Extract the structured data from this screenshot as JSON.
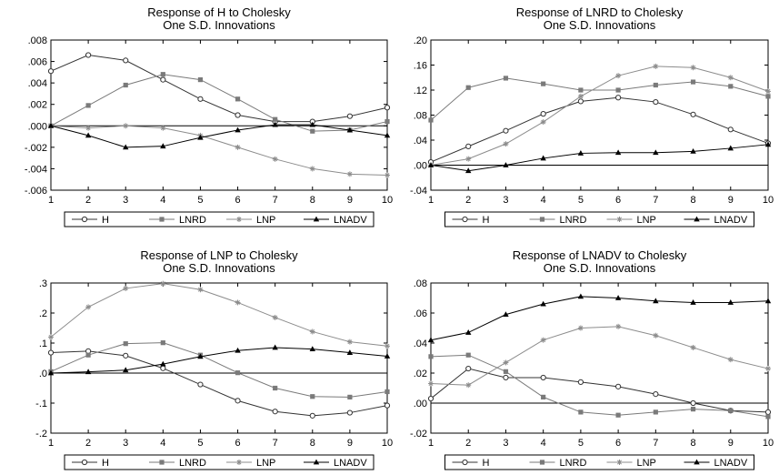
{
  "colors": {
    "H": "#333333",
    "LNRD": "#7a7a7a",
    "LNP": "#8c8c8c",
    "LNADV": "#000000",
    "zero_line": "#000000",
    "frame": "#000000"
  },
  "chart_data": [
    {
      "type": "line",
      "title": "Response of H to Cholesky",
      "subtitle": "One S.D. Innovations",
      "x": [
        1,
        2,
        3,
        4,
        5,
        6,
        7,
        8,
        9,
        10
      ],
      "x_ticks": [
        "1",
        "2",
        "3",
        "4",
        "5",
        "6",
        "7",
        "8",
        "9",
        "10"
      ],
      "ylim": [
        -0.006,
        0.008
      ],
      "y_ticks": [
        -0.006,
        -0.004,
        -0.002,
        0.0,
        0.002,
        0.004,
        0.006,
        0.008
      ],
      "y_tick_labels": [
        "-.006",
        "-.004",
        "-.002",
        ".000",
        ".002",
        ".004",
        ".006",
        ".008"
      ],
      "legend_position": "bottom",
      "series": [
        {
          "name": "H",
          "marker": "circle",
          "values": [
            0.0051,
            0.0066,
            0.0061,
            0.0043,
            0.0025,
            0.001,
            0.0004,
            0.0004,
            0.0009,
            0.0017
          ]
        },
        {
          "name": "LNRD",
          "marker": "square",
          "values": [
            0.0,
            0.0019,
            0.0038,
            0.0048,
            0.0043,
            0.0025,
            0.0006,
            -0.0005,
            -0.0004,
            0.0004
          ]
        },
        {
          "name": "LNP",
          "marker": "star",
          "values": [
            0.0,
            -0.0002,
            0.0,
            -0.0002,
            -0.0009,
            -0.002,
            -0.0031,
            -0.004,
            -0.0045,
            -0.0046
          ]
        },
        {
          "name": "LNADV",
          "marker": "triangle",
          "values": [
            0.0,
            -0.0009,
            -0.002,
            -0.0019,
            -0.0011,
            -0.0004,
            0.0001,
            0.0001,
            -0.0004,
            -0.0009
          ]
        }
      ]
    },
    {
      "type": "line",
      "title": "Response of LNRD to Cholesky",
      "subtitle": "One S.D. Innovations",
      "x": [
        1,
        2,
        3,
        4,
        5,
        6,
        7,
        8,
        9,
        10
      ],
      "x_ticks": [
        "1",
        "2",
        "3",
        "4",
        "5",
        "6",
        "7",
        "8",
        "9",
        "10"
      ],
      "ylim": [
        -0.04,
        0.2
      ],
      "y_ticks": [
        -0.04,
        0.0,
        0.04,
        0.08,
        0.12,
        0.16,
        0.2
      ],
      "y_tick_labels": [
        "-.04",
        ".00",
        ".04",
        ".08",
        ".12",
        ".16",
        ".20"
      ],
      "legend_position": "bottom",
      "series": [
        {
          "name": "H",
          "marker": "circle",
          "values": [
            0.005,
            0.03,
            0.055,
            0.082,
            0.102,
            0.108,
            0.101,
            0.081,
            0.057,
            0.035
          ]
        },
        {
          "name": "LNRD",
          "marker": "square",
          "values": [
            0.072,
            0.124,
            0.139,
            0.13,
            0.12,
            0.12,
            0.128,
            0.133,
            0.126,
            0.11
          ]
        },
        {
          "name": "LNP",
          "marker": "star",
          "values": [
            0.0,
            0.01,
            0.034,
            0.069,
            0.11,
            0.143,
            0.158,
            0.156,
            0.14,
            0.118
          ]
        },
        {
          "name": "LNADV",
          "marker": "triangle",
          "values": [
            0.0,
            -0.009,
            0.0,
            0.011,
            0.019,
            0.02,
            0.02,
            0.022,
            0.027,
            0.033
          ]
        }
      ]
    },
    {
      "type": "line",
      "title": "Response of LNP to Cholesky",
      "subtitle": "One S.D. Innovations",
      "x": [
        1,
        2,
        3,
        4,
        5,
        6,
        7,
        8,
        9,
        10
      ],
      "x_ticks": [
        "1",
        "2",
        "3",
        "4",
        "5",
        "6",
        "7",
        "8",
        "9",
        "10"
      ],
      "ylim": [
        -0.2,
        0.3
      ],
      "y_ticks": [
        -0.2,
        -0.1,
        0.0,
        0.1,
        0.2,
        0.3
      ],
      "y_tick_labels": [
        "-.2",
        "-.1",
        ".0",
        ".1",
        ".2",
        ".3"
      ],
      "legend_position": "bottom",
      "series": [
        {
          "name": "H",
          "marker": "circle",
          "values": [
            0.068,
            0.073,
            0.058,
            0.016,
            -0.038,
            -0.092,
            -0.128,
            -0.142,
            -0.132,
            -0.108
          ]
        },
        {
          "name": "LNRD",
          "marker": "square",
          "values": [
            0.005,
            0.06,
            0.098,
            0.101,
            0.06,
            0.001,
            -0.05,
            -0.078,
            -0.08,
            -0.062
          ]
        },
        {
          "name": "LNP",
          "marker": "star",
          "values": [
            0.12,
            0.22,
            0.282,
            0.298,
            0.278,
            0.235,
            0.185,
            0.138,
            0.104,
            0.09
          ]
        },
        {
          "name": "LNADV",
          "marker": "triangle",
          "values": [
            0.0,
            0.004,
            0.01,
            0.03,
            0.055,
            0.075,
            0.085,
            0.08,
            0.068,
            0.056
          ]
        }
      ]
    },
    {
      "type": "line",
      "title": "Response of LNADV to Cholesky",
      "subtitle": "One S.D. Innovations",
      "x": [
        1,
        2,
        3,
        4,
        5,
        6,
        7,
        8,
        9,
        10
      ],
      "x_ticks": [
        "1",
        "2",
        "3",
        "4",
        "5",
        "6",
        "7",
        "8",
        "9",
        "10"
      ],
      "ylim": [
        -0.02,
        0.08
      ],
      "y_ticks": [
        -0.02,
        0.0,
        0.02,
        0.04,
        0.06,
        0.08
      ],
      "y_tick_labels": [
        "-.02",
        ".00",
        ".02",
        ".04",
        ".06",
        ".08"
      ],
      "legend_position": "bottom",
      "series": [
        {
          "name": "H",
          "marker": "circle",
          "values": [
            0.003,
            0.023,
            0.017,
            0.017,
            0.014,
            0.011,
            0.006,
            0.0,
            -0.005,
            -0.006
          ]
        },
        {
          "name": "LNRD",
          "marker": "square",
          "values": [
            0.031,
            0.032,
            0.021,
            0.004,
            -0.006,
            -0.008,
            -0.006,
            -0.004,
            -0.005,
            -0.009
          ]
        },
        {
          "name": "LNP",
          "marker": "star",
          "values": [
            0.013,
            0.012,
            0.027,
            0.042,
            0.05,
            0.051,
            0.045,
            0.037,
            0.029,
            0.023
          ]
        },
        {
          "name": "LNADV",
          "marker": "triangle",
          "values": [
            0.042,
            0.047,
            0.059,
            0.066,
            0.071,
            0.07,
            0.068,
            0.067,
            0.067,
            0.068
          ]
        }
      ]
    }
  ]
}
